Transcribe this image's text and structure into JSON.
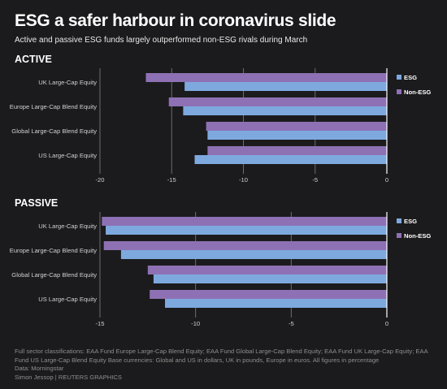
{
  "header": {
    "title": "ESG a safer harbour in coronavirus slide",
    "subtitle": "Active and passive ESG funds largely outperformed non-ESG rivals during March"
  },
  "colors": {
    "background": "#1b1b1d",
    "esg": "#7ea9df",
    "non_esg": "#8e71b4",
    "axis_text": "#d0d0d0",
    "gridline": "#6d6d6d",
    "zero_line": "#ffffff"
  },
  "chart_data": [
    {
      "type": "bar",
      "orientation": "horizontal",
      "panel_label": "ACTIVE",
      "categories": [
        "UK Large-Cap Equity",
        "Europe Large-Cap Blend Equity",
        "Global Large-Cap Blend Equity",
        "US Large-Cap Equity"
      ],
      "series": [
        {
          "name": "Non-ESG",
          "color": "#8e71b4",
          "values": [
            -16.8,
            -15.2,
            -12.6,
            -12.5
          ]
        },
        {
          "name": "ESG",
          "color": "#7ea9df",
          "values": [
            -14.1,
            -14.2,
            -12.5,
            -13.4
          ]
        }
      ],
      "legend": [
        "ESG",
        "Non-ESG"
      ],
      "legend_position": "right",
      "xlim": [
        -20,
        0
      ],
      "xticks": [
        -20,
        -15,
        -10,
        -5,
        0
      ],
      "xtick_labels": [
        "-20",
        "-15",
        "-10",
        "-5",
        "0"
      ],
      "grid": true
    },
    {
      "type": "bar",
      "orientation": "horizontal",
      "panel_label": "PASSIVE",
      "categories": [
        "UK Large-Cap Equity",
        "Europe Large-Cap Blend Equity",
        "Global Large-Cap Blend Equity",
        "US Large-Cap Equity"
      ],
      "series": [
        {
          "name": "Non-ESG",
          "color": "#8e71b4",
          "values": [
            -14.9,
            -14.8,
            -12.5,
            -12.4
          ]
        },
        {
          "name": "ESG",
          "color": "#7ea9df",
          "values": [
            -14.7,
            -13.9,
            -12.2,
            -11.6
          ]
        }
      ],
      "legend": [
        "ESG",
        "Non-ESG"
      ],
      "legend_position": "right",
      "xlim": [
        -15,
        0
      ],
      "xticks": [
        -15,
        -10,
        -5,
        0
      ],
      "xtick_labels": [
        "-15",
        "-10",
        "-5",
        "0"
      ],
      "grid": true
    }
  ],
  "footer": {
    "notes": "Full sector classifications: EAA Fund Europe Large-Cap Blend Equity; EAA Fund Global Large-Cap Blend Equity; EAA Fund UK Large-Cap Equity; EAA Fund US Large-Cap Blend Equity Base currencies: Global and US in dollars, UK in pounds, Europe in euros. All figures in percentage",
    "source": "Data: Morningstar",
    "credit": "Simon Jessop    | REUTERS GRAPHICS"
  }
}
